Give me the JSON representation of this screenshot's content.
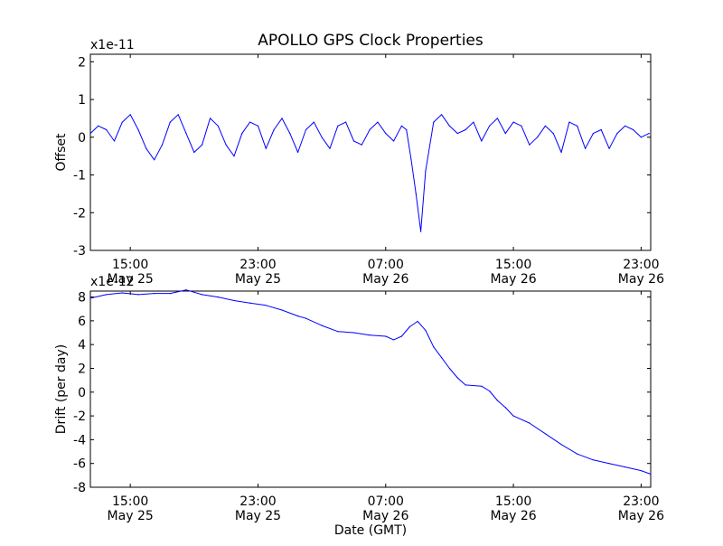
{
  "figure": {
    "title": "APOLLO GPS Clock Properties",
    "xlabel": "Date (GMT)"
  },
  "x_ticks": [
    {
      "time": "15:00",
      "date": "May 25",
      "hours": 15
    },
    {
      "time": "23:00",
      "date": "May 25",
      "hours": 23
    },
    {
      "time": "07:00",
      "date": "May 26",
      "hours": 31
    },
    {
      "time": "15:00",
      "date": "May 26",
      "hours": 39
    },
    {
      "time": "23:00",
      "date": "May 26",
      "hours": 47
    }
  ],
  "colors": {
    "line": "#0000ff",
    "axis": "#000000",
    "background": "#ffffff"
  },
  "chart_data": [
    {
      "type": "line",
      "title": "APOLLO GPS Clock Properties",
      "ylabel": "Offset",
      "offset_text": "x1e-11",
      "xlim": [
        "May 25 12:30",
        "May 26 23:35"
      ],
      "xlim_hours": [
        12.5,
        47.6
      ],
      "ylim": [
        -3,
        2.2
      ],
      "yticks": [
        -3,
        -2,
        -1,
        0,
        1,
        2
      ],
      "series": [
        {
          "color": "#0000ff",
          "x_hours": [
            12.5,
            13.0,
            13.5,
            14.0,
            14.5,
            15.0,
            15.5,
            16.0,
            16.5,
            17.0,
            17.5,
            18.0,
            18.5,
            19.0,
            19.5,
            20.0,
            20.5,
            21.0,
            21.5,
            22.0,
            22.5,
            23.0,
            23.5,
            24.0,
            24.5,
            25.0,
            25.5,
            26.0,
            26.5,
            27.0,
            27.5,
            28.0,
            28.5,
            29.0,
            29.5,
            30.0,
            30.5,
            31.0,
            31.5,
            32.0,
            32.3,
            32.6,
            32.9,
            33.2,
            33.5,
            34.0,
            34.5,
            35.0,
            35.5,
            36.0,
            36.5,
            37.0,
            37.5,
            38.0,
            38.5,
            39.0,
            39.5,
            40.0,
            40.5,
            41.0,
            41.5,
            42.0,
            42.5,
            43.0,
            43.5,
            44.0,
            44.5,
            45.0,
            45.5,
            46.0,
            46.5,
            47.0,
            47.5
          ],
          "values": [
            0.1,
            0.3,
            0.2,
            -0.1,
            0.4,
            0.6,
            0.2,
            -0.3,
            -0.6,
            -0.2,
            0.4,
            0.6,
            0.1,
            -0.4,
            -0.2,
            0.5,
            0.3,
            -0.2,
            -0.5,
            0.1,
            0.4,
            0.3,
            -0.3,
            0.2,
            0.5,
            0.1,
            -0.4,
            0.2,
            0.4,
            0.0,
            -0.3,
            0.3,
            0.4,
            -0.1,
            -0.2,
            0.2,
            0.4,
            0.1,
            -0.1,
            0.3,
            0.2,
            -0.6,
            -1.5,
            -2.5,
            -0.9,
            0.4,
            0.6,
            0.3,
            0.1,
            0.2,
            0.4,
            -0.1,
            0.3,
            0.5,
            0.1,
            0.4,
            0.3,
            -0.2,
            0.0,
            0.3,
            0.1,
            -0.4,
            0.4,
            0.3,
            -0.3,
            0.1,
            0.2,
            -0.3,
            0.1,
            0.3,
            0.2,
            0.0,
            0.1
          ]
        }
      ]
    },
    {
      "type": "line",
      "ylabel": "Drift (per day)",
      "offset_text": "x1e-12",
      "xlabel": "Date (GMT)",
      "xlim": [
        "May 25 12:30",
        "May 26 23:35"
      ],
      "xlim_hours": [
        12.5,
        47.6
      ],
      "ylim": [
        -8,
        8.5
      ],
      "yticks": [
        -8,
        -6,
        -4,
        -2,
        0,
        2,
        4,
        6,
        8
      ],
      "series": [
        {
          "color": "#0000ff",
          "x_hours": [
            12.5,
            13.5,
            14.5,
            15.5,
            16.5,
            17.5,
            18.5,
            19.5,
            20.5,
            21.5,
            22.5,
            23.5,
            24.5,
            25.5,
            26.0,
            27.0,
            28.0,
            29.0,
            30.0,
            31.0,
            31.5,
            32.0,
            32.5,
            33.0,
            33.5,
            34.0,
            34.5,
            35.0,
            35.5,
            36.0,
            37.0,
            37.5,
            38.0,
            38.5,
            39.0,
            40.0,
            41.0,
            42.0,
            43.0,
            44.0,
            45.0,
            46.0,
            47.0,
            47.6
          ],
          "values": [
            7.9,
            8.2,
            8.35,
            8.2,
            8.3,
            8.3,
            8.6,
            8.2,
            8.0,
            7.7,
            7.5,
            7.3,
            6.9,
            6.4,
            6.2,
            5.6,
            5.1,
            5.0,
            4.8,
            4.7,
            4.4,
            4.7,
            5.5,
            5.95,
            5.2,
            3.8,
            2.9,
            2.0,
            1.2,
            0.6,
            0.5,
            0.1,
            -0.7,
            -1.3,
            -2.0,
            -2.6,
            -3.5,
            -4.4,
            -5.2,
            -5.7,
            -6.0,
            -6.3,
            -6.6,
            -6.9
          ]
        }
      ]
    }
  ]
}
